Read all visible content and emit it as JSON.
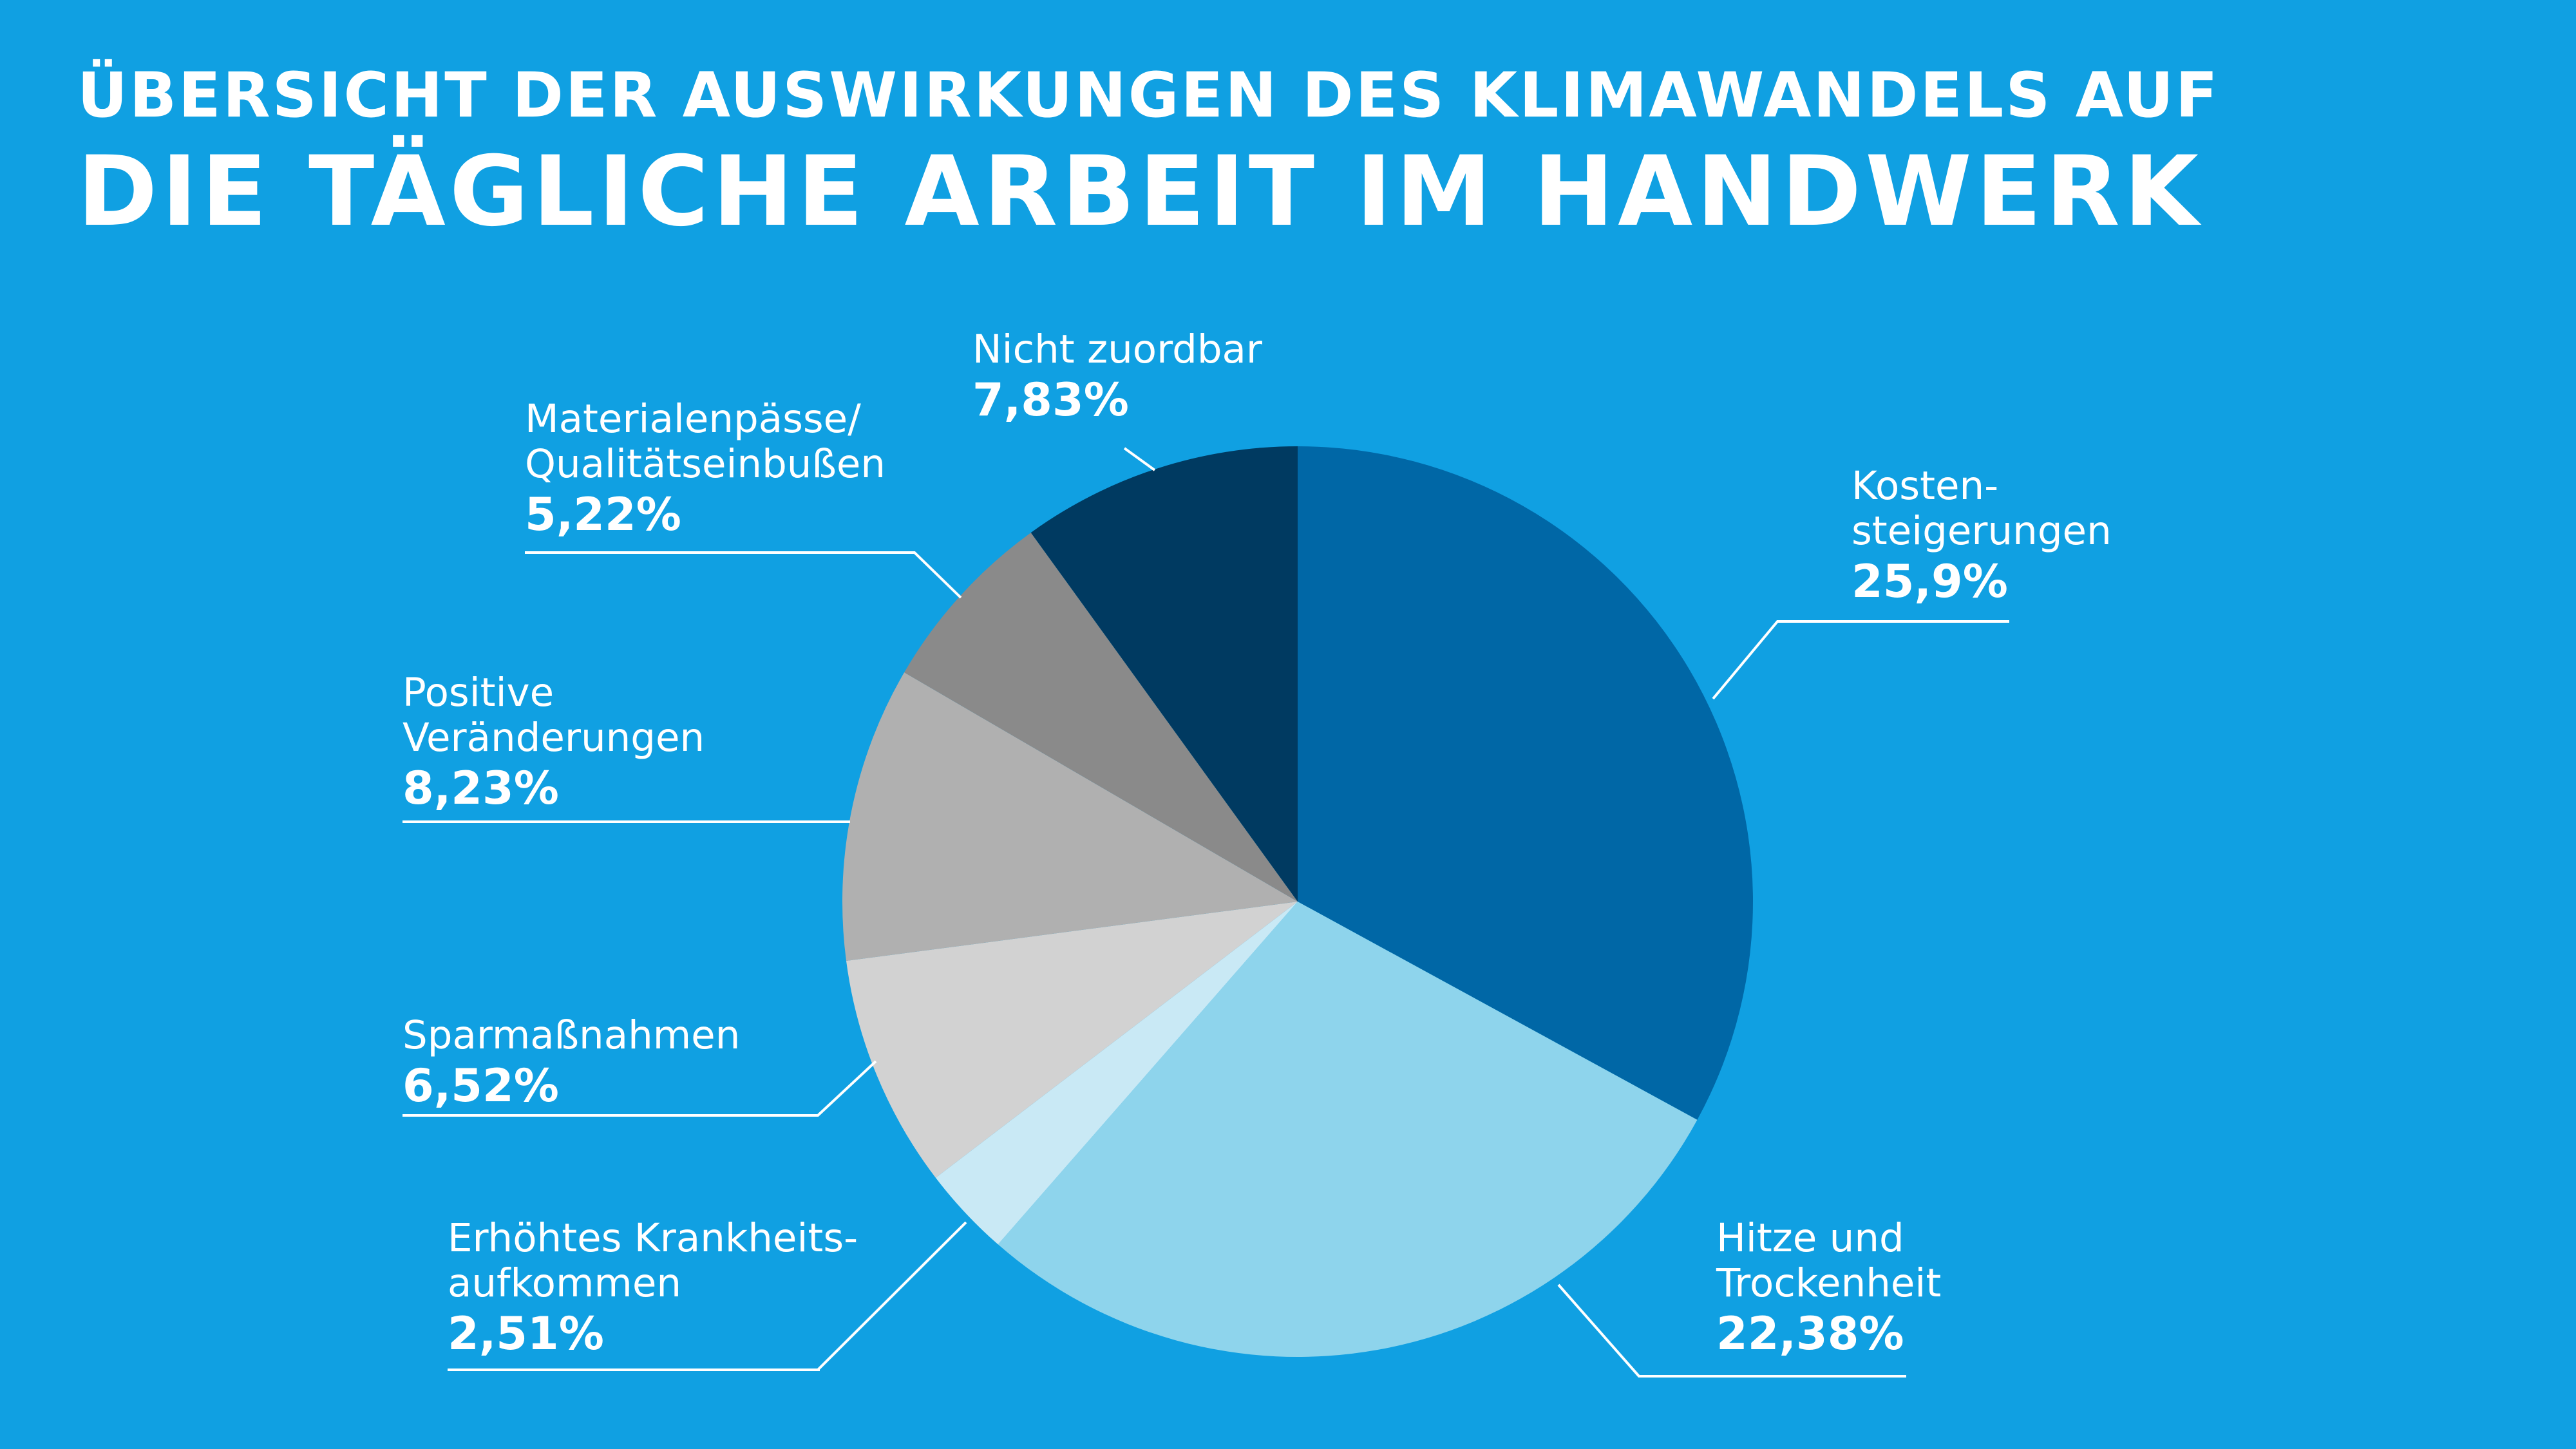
{
  "header": {
    "title_line1": "ÜBERSICHT DER AUSWIRKUNGEN DES KLIMAWANDELS AUF",
    "title_line2": "DIE TÄGLICHE ARBEIT IM HANDWERK"
  },
  "colors": {
    "background": "#10A0E2",
    "text": "#FFFFFF",
    "leader_line": "#FFFFFF"
  },
  "chart_data": {
    "type": "pie",
    "value_unit": "%",
    "start_angle_deg": 0,
    "direction": "clockwise",
    "slices": [
      {
        "label_lines": [
          "Kosten-",
          "steigerungen"
        ],
        "value": 25.9,
        "value_text": "25,9%",
        "color": "#0067A6"
      },
      {
        "label_lines": [
          "Hitze und",
          "Trockenheit"
        ],
        "value": 22.38,
        "value_text": "22,38%",
        "color": "#8ED4EC"
      },
      {
        "label_lines": [
          "Erhöhtes Krankheits-",
          "aufkommen"
        ],
        "value": 2.51,
        "value_text": "2,51%",
        "color": "#C9E9F5"
      },
      {
        "label_lines": [
          "Sparmaßnahmen"
        ],
        "value": 6.52,
        "value_text": "6,52%",
        "color": "#D2D2D2"
      },
      {
        "label_lines": [
          "Positive",
          "Veränderungen"
        ],
        "value": 8.23,
        "value_text": "8,23%",
        "color": "#B0B0B0"
      },
      {
        "label_lines": [
          "Materialenpässe/",
          "Qualitätseinbußen"
        ],
        "value": 5.22,
        "value_text": "5,22%",
        "color": "#8A8A8A"
      },
      {
        "label_lines": [
          "Nicht zuordbar"
        ],
        "value": 7.83,
        "value_text": "7,83%",
        "color": "#003A61"
      }
    ]
  }
}
